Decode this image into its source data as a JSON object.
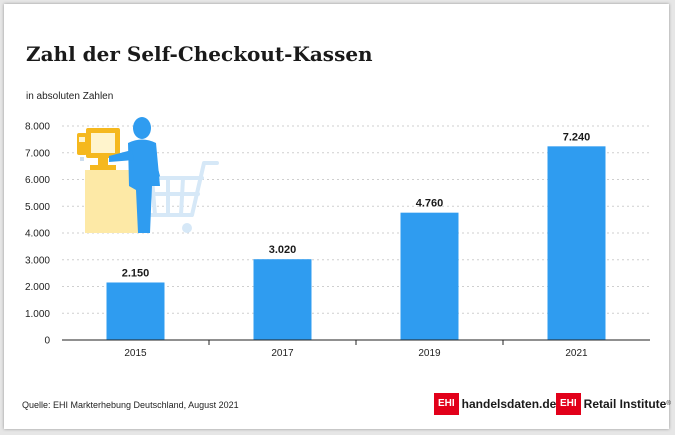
{
  "chart_data": {
    "type": "bar",
    "title": "Zahl der Self-Checkout-Kassen",
    "subtitle": "in absoluten Zahlen",
    "categories": [
      "2015",
      "2017",
      "2019",
      "2021"
    ],
    "values": [
      2150,
      3020,
      4760,
      7240
    ],
    "value_labels": [
      "2.150",
      "3.020",
      "4.760",
      "7.240"
    ],
    "ylim": [
      0,
      8000
    ],
    "yticks": [
      0,
      1000,
      2000,
      3000,
      4000,
      5000,
      6000,
      7000,
      8000
    ],
    "ytick_labels": [
      "0",
      "1.000",
      "2.000",
      "3.000",
      "4.000",
      "5.000",
      "6.000",
      "7.000",
      "8.000"
    ],
    "grid": true,
    "bar_color": "#2f9cf0"
  },
  "footer": {
    "source": "Quelle: EHI Markterhebung Deutschland, August 2021",
    "logo1_box": "EHI",
    "logo1_text": "handelsdaten.de",
    "logo2_box": "EHI",
    "logo2_text": "Retail Institute",
    "logo2_mark": "®"
  },
  "colors": {
    "accent": "#2f9cf0",
    "illustration_yellow": "#fde9a6",
    "illustration_gold": "#f5b81e",
    "logo_red": "#e2001a"
  }
}
